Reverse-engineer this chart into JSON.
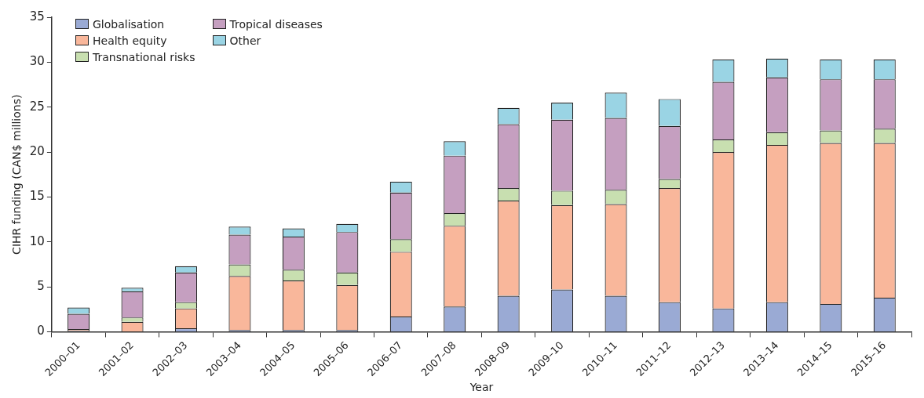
{
  "chart_data": {
    "type": "bar",
    "stacked": true,
    "xlabel": "Year",
    "ylabel": "CIHR funding (CAN$ millions)",
    "categories": [
      "2000–01",
      "2001–02",
      "2002–03",
      "2003–04",
      "2004–05",
      "2005–06",
      "2006–07",
      "2007–08",
      "2008–09",
      "2009–10",
      "2010–11",
      "2011–12",
      "2012–13",
      "2013–14",
      "2014–15",
      "2015–16"
    ],
    "series": [
      {
        "name": "Globalisation",
        "color": "#9aaad4",
        "values": [
          0.1,
          0,
          0.4,
          0.2,
          0.2,
          0.2,
          1.7,
          2.8,
          4.0,
          4.7,
          4.0,
          3.3,
          2.6,
          3.3,
          3.1,
          3.8
        ]
      },
      {
        "name": "Health equity",
        "color": "#f9b79b",
        "values": [
          0.2,
          1.1,
          2.2,
          6.0,
          5.5,
          5.0,
          7.2,
          9.0,
          10.6,
          9.4,
          10.2,
          12.7,
          17.4,
          17.5,
          17.9,
          17.2
        ]
      },
      {
        "name": "Transnational risks",
        "color": "#c8dfb0",
        "values": [
          null,
          0.5,
          0.7,
          1.3,
          1.2,
          1.4,
          1.4,
          1.4,
          1.4,
          1.6,
          1.6,
          1.0,
          1.4,
          1.4,
          1.4,
          1.6
        ]
      },
      {
        "name": "Tropical diseases",
        "color": "#c59fc0",
        "values": [
          1.7,
          2.9,
          3.3,
          3.3,
          3.7,
          4.5,
          5.2,
          6.4,
          7.1,
          7.9,
          8.0,
          5.9,
          6.4,
          6.1,
          5.7,
          5.5
        ]
      },
      {
        "name": "Other",
        "color": "#9ad4e4",
        "values": [
          0.7,
          0.4,
          0.7,
          0.9,
          0.9,
          0.9,
          1.2,
          1.6,
          1.8,
          1.9,
          2.8,
          3.0,
          2.5,
          2.1,
          2.2,
          2.2
        ]
      }
    ],
    "ylim": [
      0,
      35
    ],
    "yticks": [
      0,
      5,
      10,
      15,
      20,
      25,
      30,
      35
    ],
    "grid": false,
    "legend": "top left"
  }
}
